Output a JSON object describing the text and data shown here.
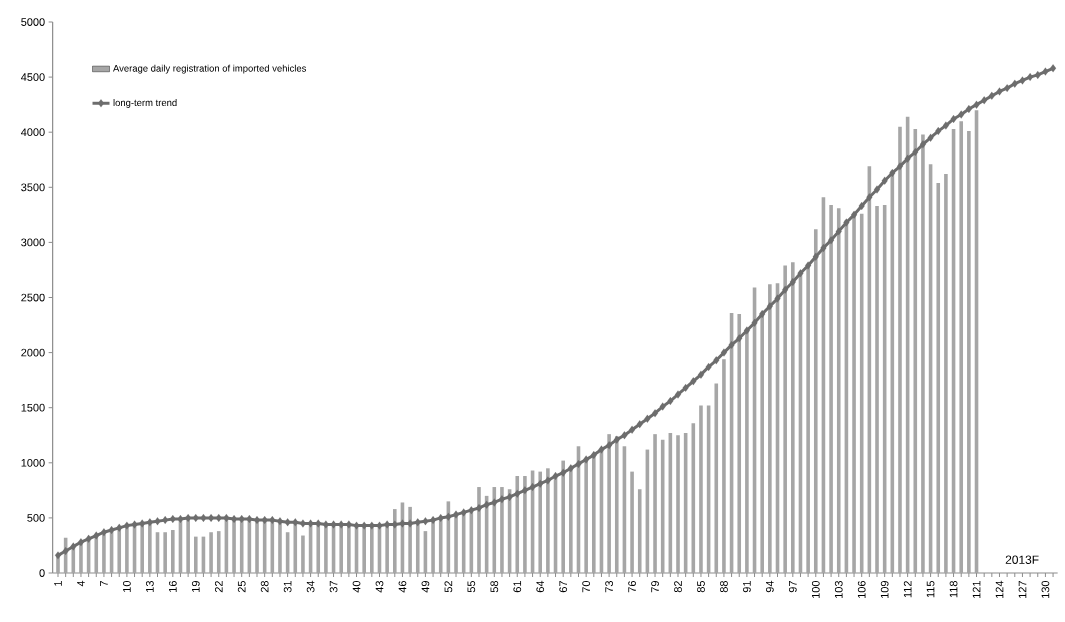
{
  "chart_data": {
    "type": "bar",
    "categories": [
      "1",
      null,
      null,
      "4",
      null,
      null,
      "7",
      null,
      null,
      "10",
      null,
      null,
      "13",
      null,
      null,
      "16",
      null,
      null,
      "19",
      null,
      null,
      "22",
      null,
      null,
      "25",
      null,
      null,
      "28",
      null,
      null,
      "31",
      null,
      null,
      "34",
      null,
      null,
      "37",
      null,
      null,
      "40",
      null,
      null,
      "43",
      null,
      null,
      "46",
      null,
      null,
      "49",
      null,
      null,
      "52",
      null,
      null,
      "55",
      null,
      null,
      "58",
      null,
      null,
      "61",
      null,
      null,
      "64",
      null,
      null,
      "67",
      null,
      null,
      "70",
      null,
      null,
      "73",
      null,
      null,
      "76",
      null,
      null,
      "79",
      null,
      null,
      "82",
      null,
      null,
      "85",
      null,
      null,
      "88",
      null,
      null,
      "91",
      null,
      null,
      "94",
      null,
      null,
      "97",
      null,
      null,
      "100",
      null,
      null,
      "103",
      null,
      null,
      "106",
      null,
      null,
      "109",
      null,
      null,
      "112",
      null,
      null,
      "115",
      null,
      null,
      "118",
      null,
      null,
      "121",
      null,
      null,
      "124",
      null,
      null,
      "127",
      null,
      null,
      "130",
      null
    ],
    "series": [
      {
        "name": "Average daily registration of imported vehicles",
        "color": "#a6a6a6",
        "values": [
          150,
          320,
          230,
          270,
          300,
          330,
          350,
          380,
          400,
          420,
          440,
          450,
          460,
          370,
          370,
          390,
          490,
          500,
          330,
          330,
          370,
          380,
          490,
          490,
          490,
          480,
          480,
          480,
          470,
          460,
          370,
          450,
          340,
          440,
          440,
          440,
          430,
          430,
          430,
          430,
          430,
          430,
          430,
          430,
          580,
          640,
          600,
          450,
          380,
          480,
          490,
          650,
          530,
          550,
          570,
          780,
          700,
          780,
          780,
          760,
          880,
          880,
          930,
          920,
          950,
          880,
          1020,
          950,
          1150,
          1030,
          1070,
          1110,
          1260,
          1240,
          1150,
          920,
          760,
          1120,
          1260,
          1210,
          1270,
          1250,
          1270,
          1360,
          1520,
          1520,
          1720,
          1940,
          2360,
          2350,
          2200,
          2590,
          2350,
          2620,
          2630,
          2790,
          2820,
          2720,
          2790,
          3120,
          3410,
          3340,
          3310,
          3200,
          3250,
          3260,
          3690,
          3330,
          3340,
          3650,
          4050,
          4140,
          4030,
          3980,
          3710,
          3540,
          3620,
          4030,
          4100,
          4010,
          4200,
          null,
          null,
          null,
          null,
          null,
          null,
          null,
          null,
          null,
          null
        ]
      },
      {
        "name": "long-term trend",
        "type": "line",
        "color": "#6d6d6d",
        "values": [
          160,
          200,
          240,
          280,
          310,
          340,
          370,
          390,
          410,
          430,
          440,
          450,
          460,
          470,
          480,
          490,
          490,
          500,
          500,
          500,
          500,
          500,
          500,
          490,
          490,
          490,
          480,
          480,
          480,
          470,
          460,
          460,
          450,
          450,
          450,
          440,
          440,
          440,
          440,
          430,
          430,
          430,
          430,
          440,
          440,
          450,
          450,
          460,
          470,
          480,
          500,
          510,
          530,
          550,
          570,
          590,
          620,
          640,
          670,
          690,
          720,
          750,
          780,
          810,
          840,
          880,
          910,
          950,
          990,
          1030,
          1070,
          1120,
          1160,
          1210,
          1250,
          1300,
          1350,
          1400,
          1450,
          1510,
          1560,
          1620,
          1680,
          1740,
          1800,
          1870,
          1930,
          2000,
          2070,
          2130,
          2200,
          2270,
          2350,
          2420,
          2490,
          2570,
          2640,
          2720,
          2790,
          2870,
          2950,
          3020,
          3100,
          3180,
          3250,
          3330,
          3410,
          3480,
          3560,
          3630,
          3690,
          3760,
          3820,
          3890,
          3950,
          4010,
          4060,
          4120,
          4160,
          4210,
          4250,
          4290,
          4330,
          4370,
          4400,
          4440,
          4470,
          4500,
          4520,
          4550,
          4580
        ]
      }
    ],
    "marker": "diamond",
    "ylim": [
      0,
      5000
    ],
    "yticks": [
      0,
      500,
      1000,
      1500,
      2000,
      2500,
      3000,
      3500,
      4000,
      4500,
      5000
    ],
    "legend": "top left",
    "annotations": [
      "2013F"
    ]
  }
}
